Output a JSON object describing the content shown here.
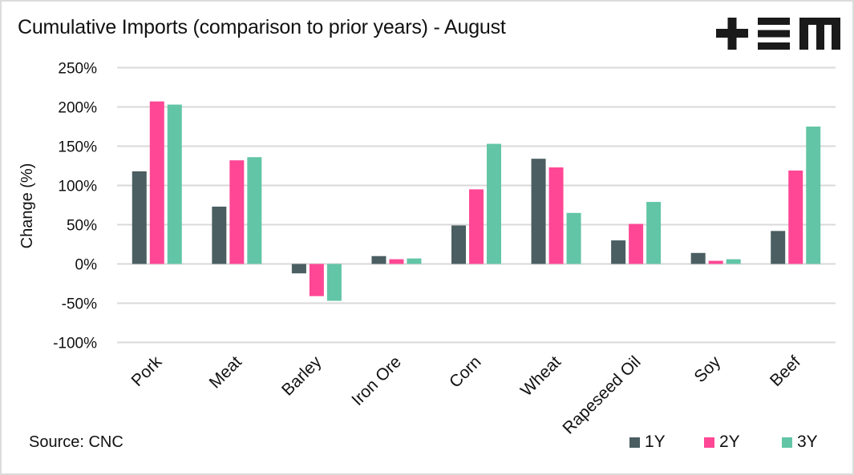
{
  "header": {
    "title": "Cumulative Imports (comparison to prior years) - August",
    "logo": "+EM-logo"
  },
  "footer": {
    "source": "Source: CNC"
  },
  "colors": {
    "1Y": "#4b5e62",
    "2Y": "#ff4795",
    "3Y": "#62c5a6",
    "grid": "#d9d9d9",
    "text": "#111111"
  },
  "chart_data": {
    "type": "bar",
    "title": "Cumulative Imports (comparison to prior years) - August",
    "xlabel": "",
    "ylabel": "Change (%)",
    "ylim": [
      -100,
      250
    ],
    "yticks": [
      250,
      200,
      150,
      100,
      50,
      0,
      -50,
      -100
    ],
    "ytick_labels": [
      "250%",
      "200%",
      "150%",
      "100%",
      "50%",
      "0%",
      "-50%",
      "-100%"
    ],
    "grid": true,
    "legend_position": "bottom-right",
    "categories": [
      "Pork",
      "Meat",
      "Barley",
      "Iron Ore",
      "Corn",
      "Wheat",
      "Rapeseed Oil",
      "Soy",
      "Beef"
    ],
    "series": [
      {
        "name": "1Y",
        "color": "#4b5e62",
        "values": [
          118,
          73,
          -12,
          10,
          49,
          134,
          30,
          14,
          42
        ]
      },
      {
        "name": "2Y",
        "color": "#ff4795",
        "values": [
          207,
          132,
          -41,
          6,
          95,
          123,
          51,
          4,
          119
        ]
      },
      {
        "name": "3Y",
        "color": "#62c5a6",
        "values": [
          203,
          136,
          -47,
          7,
          153,
          65,
          79,
          6,
          175
        ]
      }
    ]
  }
}
